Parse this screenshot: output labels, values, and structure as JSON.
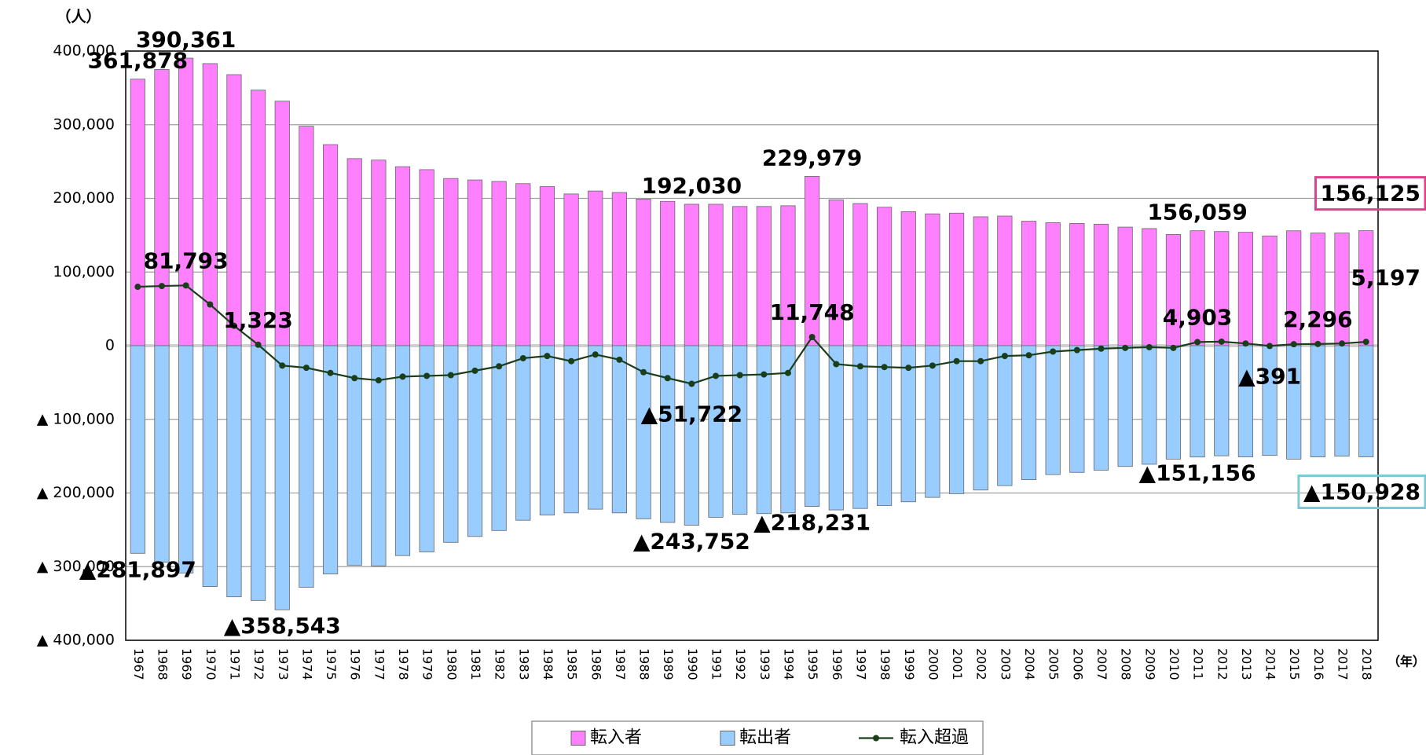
{
  "chart_data": {
    "type": "bar",
    "y_unit": "（人）",
    "x_unit": "（年）",
    "categories": [
      "1967",
      "1968",
      "1969",
      "1970",
      "1971",
      "1972",
      "1973",
      "1974",
      "1975",
      "1976",
      "1977",
      "1978",
      "1979",
      "1980",
      "1981",
      "1982",
      "1983",
      "1984",
      "1985",
      "1986",
      "1987",
      "1988",
      "1989",
      "1990",
      "1991",
      "1992",
      "1993",
      "1994",
      "1995",
      "1996",
      "1997",
      "1998",
      "1999",
      "2000",
      "2001",
      "2002",
      "2003",
      "2004",
      "2005",
      "2006",
      "2007",
      "2008",
      "2009",
      "2010",
      "2011",
      "2012",
      "2013",
      "2014",
      "2015",
      "2016",
      "2017",
      "2018"
    ],
    "series": [
      {
        "name": "転入者",
        "type": "bar",
        "color": "#ff80ff",
        "values": [
          361878,
          375000,
          390361,
          383000,
          368000,
          347000,
          332000,
          298000,
          273000,
          254000,
          252000,
          243000,
          239000,
          227000,
          225000,
          223000,
          220000,
          216000,
          206000,
          210000,
          208000,
          199000,
          196000,
          192030,
          192000,
          189000,
          189000,
          190000,
          229979,
          198000,
          193000,
          188000,
          182000,
          179000,
          180000,
          175000,
          176000,
          169000,
          167000,
          166000,
          165000,
          161000,
          159000,
          151000,
          156059,
          155000,
          154000,
          149000,
          156000,
          153000,
          153000,
          156125
        ],
        "value_labels": [
          "361,878",
          null,
          "390,361",
          null,
          null,
          null,
          null,
          null,
          null,
          null,
          null,
          null,
          null,
          null,
          null,
          null,
          null,
          null,
          null,
          null,
          null,
          null,
          null,
          "192,030",
          null,
          null,
          null,
          null,
          "229,979",
          null,
          null,
          null,
          null,
          null,
          null,
          null,
          null,
          null,
          null,
          null,
          null,
          null,
          null,
          null,
          "156,059",
          null,
          null,
          null,
          null,
          null,
          null,
          "156,125"
        ]
      },
      {
        "name": "転出者",
        "type": "bar",
        "color": "#99ccff",
        "values": [
          -281897,
          -294000,
          -308568,
          -327000,
          -341000,
          -346000,
          -358543,
          -328000,
          -310000,
          -298000,
          -299000,
          -285000,
          -280000,
          -267000,
          -259000,
          -251000,
          -237000,
          -230000,
          -227000,
          -222000,
          -227000,
          -235000,
          -240000,
          -243752,
          -233000,
          -229000,
          -228000,
          -227000,
          -218231,
          -223000,
          -221000,
          -217000,
          -212000,
          -206000,
          -201000,
          -196000,
          -190000,
          -182000,
          -175000,
          -172000,
          -169000,
          -164000,
          -161000,
          -154000,
          -151156,
          -149500,
          -151000,
          -149000,
          -154000,
          -151000,
          -150000,
          -150928
        ],
        "value_labels": [
          "▲281,897",
          null,
          null,
          null,
          null,
          null,
          "▲358,543",
          null,
          null,
          null,
          null,
          null,
          null,
          null,
          null,
          null,
          null,
          null,
          null,
          null,
          null,
          null,
          null,
          "▲243,752",
          null,
          null,
          null,
          null,
          "▲218,231",
          null,
          null,
          null,
          null,
          null,
          null,
          null,
          null,
          null,
          null,
          null,
          null,
          null,
          null,
          null,
          "▲151,156",
          null,
          null,
          null,
          null,
          null,
          null,
          "▲150,928"
        ]
      },
      {
        "name": "転入超過",
        "type": "line",
        "color": "#1a3d1a",
        "values": [
          79981,
          81000,
          81793,
          56000,
          27000,
          1323,
          -27000,
          -30000,
          -37000,
          -44000,
          -47000,
          -42000,
          -41000,
          -40000,
          -34000,
          -28000,
          -17000,
          -14000,
          -21000,
          -12000,
          -19000,
          -36000,
          -44000,
          -51722,
          -41000,
          -40000,
          -39000,
          -37000,
          11748,
          -25000,
          -28000,
          -29000,
          -30000,
          -27000,
          -21000,
          -21000,
          -14000,
          -13000,
          -8000,
          -6000,
          -4000,
          -3000,
          -2000,
          -3000,
          4903,
          5500,
          3000,
          -391,
          2000,
          2296,
          3000,
          5197
        ],
        "value_labels": [
          null,
          null,
          "81,793",
          null,
          null,
          "1,323",
          null,
          null,
          null,
          null,
          null,
          null,
          null,
          null,
          null,
          null,
          null,
          null,
          null,
          null,
          null,
          null,
          null,
          "▲51,722",
          null,
          null,
          null,
          null,
          "11,748",
          null,
          null,
          null,
          null,
          null,
          null,
          null,
          null,
          null,
          null,
          null,
          null,
          null,
          null,
          null,
          "4,903",
          null,
          null,
          "▲391",
          null,
          "2,296",
          null,
          "5,197"
        ]
      }
    ],
    "ylim": [
      -400000,
      400000
    ],
    "yticks": [
      {
        "value": -400000,
        "label": "▲ 400,000"
      },
      {
        "value": -300000,
        "label": "▲ 300,000"
      },
      {
        "value": -200000,
        "label": "▲ 200,000"
      },
      {
        "value": -100000,
        "label": "▲ 100,000"
      },
      0,
      {
        "value": 100000,
        "label": "100,000"
      },
      {
        "value": 200000,
        "label": "200,000"
      },
      {
        "value": 300000,
        "label": "300,000"
      },
      {
        "value": 400000,
        "label": "400,000"
      }
    ],
    "grid": true,
    "legend": "bottom"
  }
}
